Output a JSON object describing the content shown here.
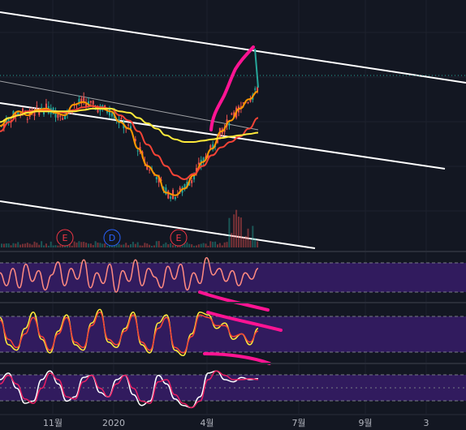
{
  "chart_data": {
    "type": "line",
    "title": "",
    "x_tick_labels": [
      "11월",
      "2020",
      "4월",
      "7월",
      "9월",
      "3"
    ],
    "x_tick_dates": [
      "2019-11",
      "2020-01",
      "2020-04",
      "2020-07",
      "2020-09",
      "2021-03"
    ],
    "grid": true,
    "legend": "none",
    "price_pane": {
      "series": [
        {
          "color": "#ff9800",
          "values": [
            0.82,
            0.88,
            0.93,
            0.9,
            0.94,
            0.95,
            0.92,
            0.9,
            0.98,
            1.0,
            0.97,
            0.95,
            0.93,
            0.85,
            0.8,
            0.65,
            0.52,
            0.45,
            0.32,
            0.3,
            0.35,
            0.45,
            0.55,
            0.65,
            0.78,
            0.86,
            0.95,
            1.02,
            1.08
          ]
        },
        {
          "color": "#f44336",
          "values": [
            0.78,
            0.85,
            0.9,
            0.93,
            0.93,
            0.94,
            0.93,
            0.92,
            0.94,
            0.96,
            0.97,
            0.96,
            0.95,
            0.9,
            0.86,
            0.78,
            0.68,
            0.6,
            0.52,
            0.45,
            0.42,
            0.46,
            0.52,
            0.6,
            0.66,
            0.7,
            0.74,
            0.8,
            0.88
          ]
        },
        {
          "color": "#ffeb3b",
          "values": [
            0.85,
            0.88,
            0.9,
            0.92,
            0.93,
            0.93,
            0.93,
            0.93,
            0.93,
            0.94,
            0.95,
            0.95,
            0.95,
            0.93,
            0.92,
            0.88,
            0.84,
            0.8,
            0.75,
            0.72,
            0.7,
            0.7,
            0.71,
            0.72,
            0.73,
            0.74,
            0.75,
            0.76,
            0.77
          ]
        }
      ],
      "trendlines": 4,
      "events": [
        {
          "label": "E",
          "color": "#f23645"
        },
        {
          "label": "D",
          "color": "#2962ff"
        },
        {
          "label": "E",
          "color": "#f23645"
        }
      ],
      "annotation_color": "#ff1493"
    },
    "oscillators": [
      {
        "band_fill": "#311b5e",
        "series": [
          {
            "color": "#ff8a80",
            "values": [
              0.6,
              0.3,
              0.7,
              0.25,
              0.8,
              0.4,
              0.65,
              0.2,
              0.55,
              0.85,
              0.3,
              0.7,
              0.45,
              0.9,
              0.25,
              0.6,
              0.35,
              0.8,
              0.15,
              0.65,
              0.4,
              0.9,
              0.3,
              0.7,
              0.5,
              0.25,
              0.75,
              0.45,
              0.8,
              0.2,
              0.6,
              0.35,
              0.95,
              0.55,
              0.7,
              0.4,
              0.65,
              0.3,
              0.6,
              0.45,
              0.7
            ]
          }
        ]
      },
      {
        "band_fill": "#311b5e",
        "series": [
          {
            "color": "#ffeb3b",
            "values": [
              0.8,
              0.3,
              0.2,
              0.6,
              0.9,
              0.4,
              0.15,
              0.55,
              0.85,
              0.3,
              0.2,
              0.7,
              0.95,
              0.35,
              0.25,
              0.6,
              0.9,
              0.3,
              0.15,
              0.7,
              0.85,
              0.2,
              0.1,
              0.5,
              0.9,
              0.85,
              0.6,
              0.7,
              0.4,
              0.5,
              0.3,
              0.6
            ]
          },
          {
            "color": "#f44336",
            "values": [
              0.75,
              0.4,
              0.25,
              0.5,
              0.8,
              0.45,
              0.2,
              0.5,
              0.8,
              0.35,
              0.25,
              0.65,
              0.9,
              0.4,
              0.3,
              0.55,
              0.85,
              0.35,
              0.2,
              0.6,
              0.8,
              0.25,
              0.15,
              0.45,
              0.85,
              0.8,
              0.65,
              0.65,
              0.45,
              0.5,
              0.35,
              0.55
            ]
          }
        ],
        "annotation_color": "#ff1493"
      },
      {
        "band_fill": "#311b5e",
        "series": [
          {
            "color": "#ffffff",
            "values": [
              0.7,
              0.85,
              0.5,
              0.15,
              0.2,
              0.7,
              0.9,
              0.6,
              0.2,
              0.3,
              0.75,
              0.8,
              0.4,
              0.3,
              0.7,
              0.8,
              0.35,
              0.1,
              0.2,
              0.8,
              0.6,
              0.25,
              0.1,
              0.05,
              0.3,
              0.85,
              0.9,
              0.7,
              0.65,
              0.75,
              0.7,
              0.72
            ]
          },
          {
            "color": "#e91e63",
            "values": [
              0.6,
              0.8,
              0.6,
              0.25,
              0.15,
              0.5,
              0.85,
              0.7,
              0.3,
              0.25,
              0.65,
              0.8,
              0.5,
              0.3,
              0.6,
              0.8,
              0.5,
              0.2,
              0.15,
              0.65,
              0.7,
              0.35,
              0.15,
              0.05,
              0.2,
              0.7,
              0.9,
              0.8,
              0.7,
              0.7,
              0.72,
              0.7
            ]
          }
        ]
      }
    ]
  }
}
